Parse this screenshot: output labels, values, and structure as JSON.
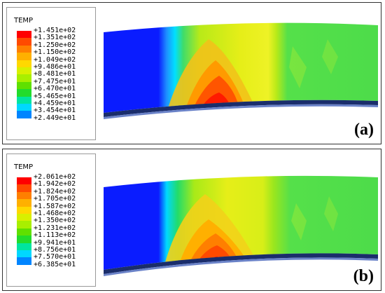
{
  "panels": [
    {
      "id": "a",
      "label": "(a)",
      "legend": {
        "title": "TEMP",
        "values": [
          "+1.451e+02",
          "+1.351e+02",
          "+1.250e+02",
          "+1.150e+02",
          "+1.049e+02",
          "+9.486e+01",
          "+8.481e+01",
          "+7.475e+01",
          "+6.470e+01",
          "+5.465e+01",
          "+4.459e+01",
          "+3.454e+01",
          "+2.449e+01"
        ]
      }
    },
    {
      "id": "b",
      "label": "(b)",
      "legend": {
        "title": "TEMP",
        "values": [
          "+2.061e+02",
          "+1.942e+02",
          "+1.824e+02",
          "+1.705e+02",
          "+1.587e+02",
          "+1.468e+02",
          "+1.350e+02",
          "+1.231e+02",
          "+1.113e+02",
          "+9.941e+01",
          "+8.756e+01",
          "+7.570e+01",
          "+6.385e+01"
        ]
      }
    }
  ],
  "colors": {
    "scale": [
      "#ff0000",
      "#ff4a00",
      "#ff7f00",
      "#ffb000",
      "#ffd800",
      "#d8f000",
      "#a8ef00",
      "#5fe000",
      "#22dc2c",
      "#00e5a0",
      "#00d8ff",
      "#0085ff",
      "#0000ff"
    ],
    "rail": "#1a2d6b"
  }
}
